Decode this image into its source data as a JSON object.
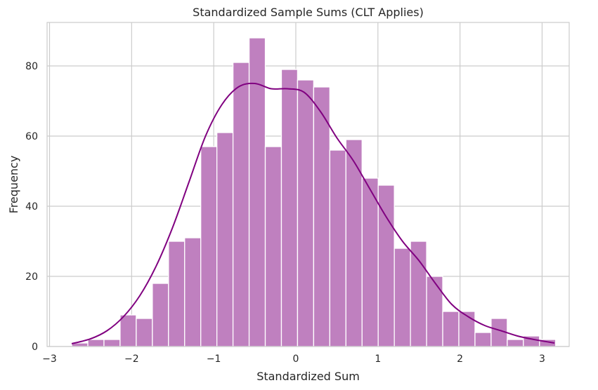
{
  "chart_data": {
    "type": "bar",
    "title": "Standardized Sample Sums (CLT Applies)",
    "xlabel": "Standardized Sum",
    "ylabel": "Frequency",
    "xlim": [
      -3.03,
      3.33
    ],
    "ylim": [
      0,
      92.4
    ],
    "xticks": [
      -3,
      -2,
      -1,
      0,
      1,
      2,
      3
    ],
    "xtick_labels": [
      "−3",
      "−2",
      "−1",
      "0",
      "1",
      "2",
      "3"
    ],
    "yticks": [
      0,
      20,
      40,
      60,
      80
    ],
    "ytick_labels": [
      "0",
      "20",
      "40",
      "60",
      "80"
    ],
    "grid": true,
    "bar_color": "#bf80bf",
    "kde_color": "#800080",
    "bins": {
      "start": -2.73,
      "width": 0.1965,
      "counts": [
        1,
        2,
        2,
        9,
        8,
        18,
        30,
        31,
        57,
        61,
        81,
        88,
        57,
        79,
        76,
        74,
        56,
        59,
        48,
        46,
        28,
        30,
        20,
        10,
        10,
        4,
        8,
        2,
        3,
        2
      ]
    },
    "kde": {
      "x": [
        -2.73,
        -2.5,
        -2.3,
        -2.1,
        -1.9,
        -1.7,
        -1.5,
        -1.3,
        -1.1,
        -0.9,
        -0.7,
        -0.5,
        -0.3,
        -0.1,
        0.1,
        0.3,
        0.5,
        0.7,
        0.9,
        1.1,
        1.3,
        1.5,
        1.7,
        1.9,
        2.1,
        2.3,
        2.5,
        2.7,
        2.9,
        3.15
      ],
      "y": [
        0.8,
        2.2,
        4.5,
        8.5,
        14.5,
        23,
        34,
        47,
        60,
        69,
        74,
        75,
        73.5,
        73.5,
        72.5,
        67,
        59.5,
        53,
        45,
        37,
        30,
        24.5,
        18,
        12,
        8.5,
        6,
        4.5,
        3,
        2,
        1
      ]
    }
  }
}
